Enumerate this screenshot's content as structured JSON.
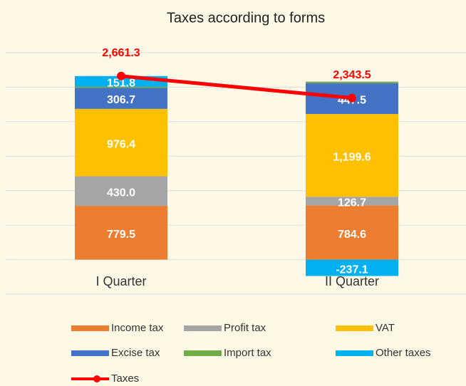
{
  "chart_data": {
    "type": "bar",
    "title": "Taxes according to forms",
    "categories": [
      "I Quarter",
      "II Quarter"
    ],
    "series": [
      {
        "name": "Income tax",
        "color": "#ed7d31",
        "values": [
          779.5,
          784.6
        ],
        "value_labels": [
          "779.5",
          "784.6"
        ]
      },
      {
        "name": "Profit tax",
        "color": "#a5a5a5",
        "values": [
          430.0,
          126.7
        ],
        "value_labels": [
          "430.0",
          "126.7"
        ]
      },
      {
        "name": "VAT",
        "color": "#ffc000",
        "values": [
          976.4,
          1199.6
        ],
        "value_labels": [
          "976.4",
          "1,199.6"
        ]
      },
      {
        "name": "Excise tax",
        "color": "#4472c4",
        "values": [
          306.7,
          447.5
        ],
        "value_labels": [
          "306.7",
          "447.5"
        ]
      },
      {
        "name": "Import tax",
        "color": "#70ad47",
        "values": [
          16.9,
          22.2
        ]
      },
      {
        "name": "Other taxes",
        "color": "#00b0f0",
        "values": [
          151.8,
          -237.1
        ],
        "value_labels": [
          "151.8",
          "-237.1"
        ]
      },
      {
        "name": "Taxes",
        "type": "line",
        "color": "#ff0000",
        "values": [
          2661.3,
          2343.5
        ],
        "value_labels": [
          "2,661.3",
          "2,343.5"
        ]
      }
    ],
    "ylim": [
      -500,
      3000
    ],
    "yticks": [
      -500,
      0,
      500,
      1000,
      1500,
      2000,
      2500,
      3000
    ],
    "grid": true
  }
}
